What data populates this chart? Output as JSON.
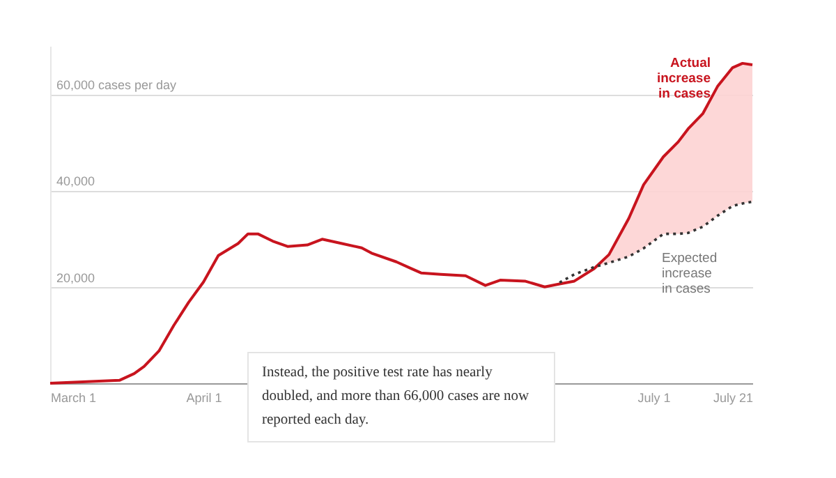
{
  "chart_data": {
    "type": "line",
    "xlim": [
      "--03-01",
      "--07-21"
    ],
    "xticks": [
      {
        "value": "--03-01",
        "label": "March 1"
      },
      {
        "value": "--04-01",
        "label": "April 1"
      },
      {
        "value": "--07-01",
        "label": "July 1"
      },
      {
        "value": "--07-21",
        "label": "July 21"
      }
    ],
    "ylim": [
      0,
      70000
    ],
    "yticks": [
      {
        "value": 20000,
        "label": "20,000"
      },
      {
        "value": 40000,
        "label": "40,000"
      },
      {
        "value": 60000,
        "label": "60,000 cases per day"
      }
    ],
    "grid": "y",
    "marker": "none",
    "series": [
      {
        "name": "Actual increase in cases",
        "color": "#c8141e",
        "line_style": "solid",
        "x": [
          "--03-01",
          "--03-15",
          "--03-18",
          "--03-20",
          "--03-23",
          "--03-26",
          "--03-29",
          "--04-01",
          "--04-04",
          "--04-08",
          "--04-10",
          "--04-12",
          "--04-15",
          "--04-18",
          "--04-22",
          "--04-25",
          "--04-29",
          "--05-03",
          "--05-05",
          "--05-10",
          "--05-13",
          "--05-15",
          "--05-19",
          "--05-24",
          "--05-28",
          "--05-31",
          "--06-05",
          "--06-09",
          "--06-12",
          "--06-15",
          "--06-19",
          "--06-22",
          "--06-26",
          "--06-29",
          "--07-03",
          "--07-06",
          "--07-08",
          "--07-11",
          "--07-14",
          "--07-17",
          "--07-19",
          "--07-21"
        ],
        "values": [
          0,
          600,
          2000,
          3500,
          6700,
          12000,
          16800,
          21000,
          26500,
          29000,
          31000,
          31000,
          29500,
          28400,
          28700,
          29900,
          29000,
          28100,
          27000,
          25200,
          23800,
          22900,
          22600,
          22300,
          20300,
          21400,
          21200,
          20000,
          20600,
          21200,
          23800,
          26700,
          34200,
          41200,
          47000,
          50100,
          52800,
          56000,
          61700,
          65500,
          66400,
          66100
        ],
        "upper": [
          null,
          null,
          null,
          null,
          null,
          null,
          null,
          null,
          null,
          null,
          null,
          null,
          null,
          null,
          null,
          null,
          null,
          null,
          null,
          null,
          null,
          null,
          null,
          null,
          null,
          null,
          null,
          null,
          20900,
          22600,
          24100,
          26700,
          34200,
          41200,
          47000,
          50100,
          52800,
          56000,
          61700,
          65500,
          66400,
          66100
        ],
        "lower": [
          null,
          null,
          null,
          null,
          null,
          null,
          null,
          null,
          null,
          null,
          null,
          null,
          null,
          null,
          null,
          null,
          null,
          null,
          null,
          null,
          null,
          null,
          null,
          null,
          null,
          null,
          null,
          null,
          20900,
          22600,
          24100,
          25000,
          26300,
          28000,
          31000,
          31000,
          31200,
          32500,
          34800,
          36800,
          37300,
          37700
        ]
      },
      {
        "name": "Expected increase in cases",
        "color": "#333333",
        "line_style": "dotted",
        "x": [
          "--06-12",
          "--06-15",
          "--06-19",
          "--06-22",
          "--06-26",
          "--06-29",
          "--07-03",
          "--07-06",
          "--07-08",
          "--07-11",
          "--07-14",
          "--07-17",
          "--07-19",
          "--07-21"
        ],
        "values": [
          20900,
          22600,
          24100,
          25000,
          26300,
          28000,
          31000,
          31000,
          31200,
          32500,
          34800,
          36800,
          37300,
          37700
        ]
      }
    ],
    "annotations": [
      "Instead, the positive test rate has nearly doubled, and more than 66,000 cases are now reported each day."
    ]
  }
}
